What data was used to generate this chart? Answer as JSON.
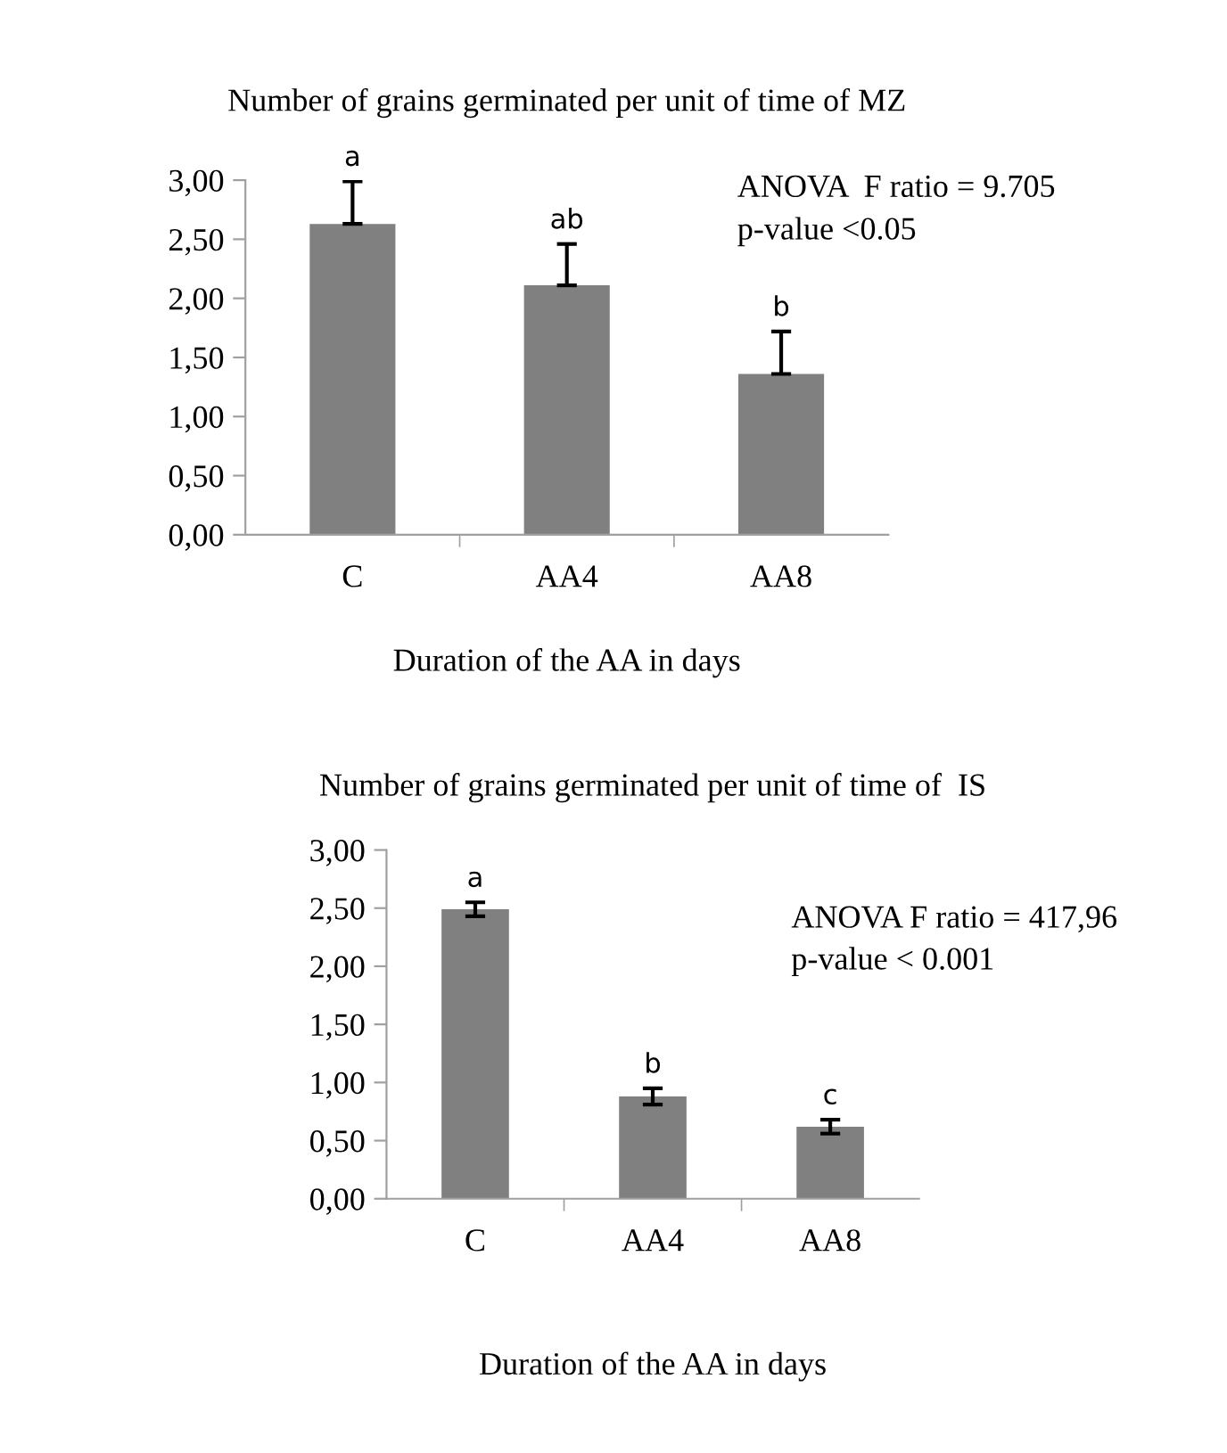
{
  "chart_data": [
    {
      "type": "bar",
      "title": "Number of grains germinated per unit of time of MZ",
      "xlabel": "Duration of the AA in days",
      "categories": [
        "C",
        "AA4",
        "AA8"
      ],
      "values": [
        2.63,
        2.11,
        1.36
      ],
      "color": "#808080",
      "errors": [
        [
          2.63,
          2.99
        ],
        [
          2.11,
          2.46
        ],
        [
          1.36,
          1.72
        ]
      ],
      "ylim": [
        0,
        3
      ],
      "yticks": [
        {
          "value": 0,
          "label": "0,00"
        },
        {
          "value": 0.5,
          "label": "0,50"
        },
        {
          "value": 1,
          "label": "1,00"
        },
        {
          "value": 1.5,
          "label": "1,50"
        },
        {
          "value": 2,
          "label": "2,00"
        },
        {
          "value": 2.5,
          "label": "2,50"
        },
        {
          "value": 3,
          "label": "3,00"
        }
      ],
      "annotations": [
        "ANOVA  F ratio = 9.705",
        "p-value <0.05",
        {
          "text": "a",
          "x": "C",
          "y": 2.99
        },
        {
          "text": "ab",
          "x": "AA4",
          "y": 2.46
        },
        {
          "text": "b",
          "x": "AA8",
          "y": 1.72
        }
      ]
    },
    {
      "type": "bar",
      "title": "Number of grains germinated per unit of time of  IS",
      "xlabel": "Duration of the AA in days",
      "categories": [
        "C",
        "AA4",
        "AA8"
      ],
      "values": [
        2.49,
        0.88,
        0.62
      ],
      "color": "#808080",
      "errors": [
        0.06,
        0.07,
        0.06
      ],
      "ylim": [
        0,
        3
      ],
      "yticks": [
        {
          "value": 0,
          "label": "0,00"
        },
        {
          "value": 0.5,
          "label": "0,50"
        },
        {
          "value": 1,
          "label": "1,00"
        },
        {
          "value": 1.5,
          "label": "1,50"
        },
        {
          "value": 2,
          "label": "2,00"
        },
        {
          "value": 2.5,
          "label": "2,50"
        },
        {
          "value": 3,
          "label": "3,00"
        }
      ],
      "annotations": [
        "ANOVA F ratio = 417,96",
        "p-value < 0.001",
        {
          "text": "a",
          "x": "C",
          "y": 2.55
        },
        {
          "text": "b",
          "x": "AA4",
          "y": 0.95
        },
        {
          "text": "c",
          "x": "AA8",
          "y": 0.68
        }
      ]
    }
  ]
}
